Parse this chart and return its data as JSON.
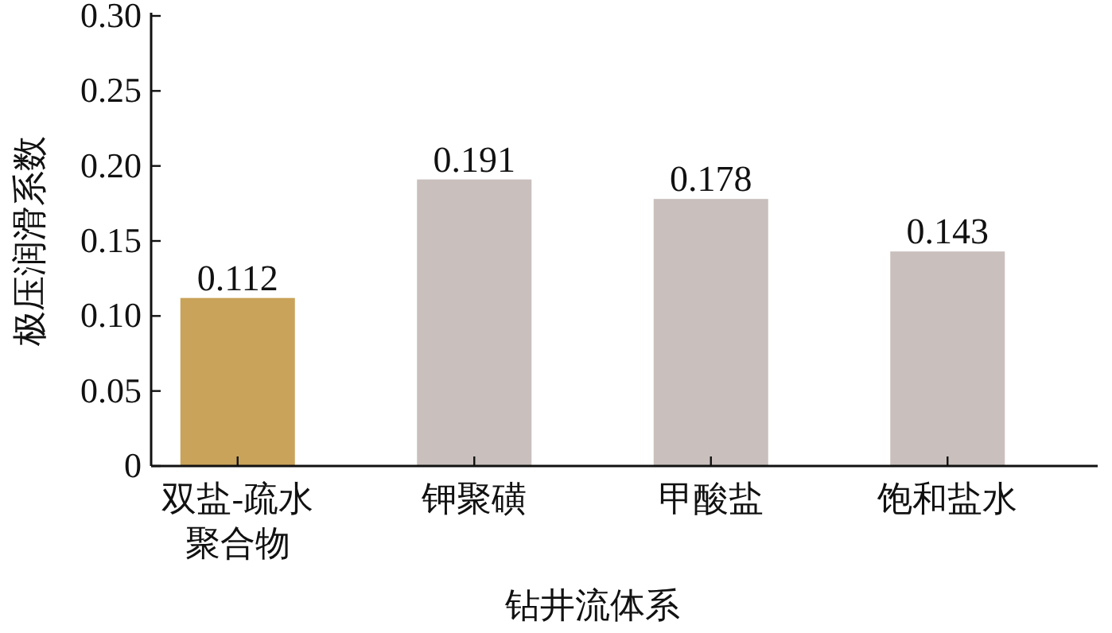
{
  "chart_data": {
    "type": "bar",
    "ylabel": "极压润滑系数",
    "xlabel": "钻井流体系",
    "categories": [
      "双盐-疏水聚合物",
      "钾聚磺",
      "甲酸盐",
      "饱和盐水"
    ],
    "values": [
      0.112,
      0.191,
      0.178,
      0.143
    ],
    "colors": [
      "#c9a35a",
      "#c9c0bd",
      "#c9c0bd",
      "#c9c0bd"
    ],
    "ylim": [
      0,
      0.3
    ],
    "yticks": [
      0,
      {
        "value": 0.05,
        "label": "0.05"
      },
      {
        "value": 0.1,
        "label": "0.10"
      },
      {
        "value": 0.15,
        "label": "0.15"
      },
      {
        "value": 0.2,
        "label": "0.20"
      },
      {
        "value": 0.25,
        "label": "0.25"
      },
      {
        "value": 0.3,
        "label": "0.30"
      }
    ],
    "data_labels": true,
    "grid": false
  }
}
